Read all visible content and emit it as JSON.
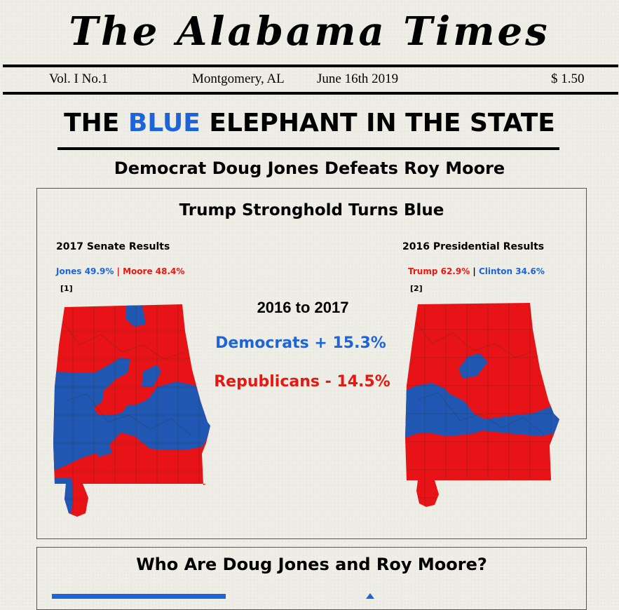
{
  "masthead": {
    "title": "The Alabama Times"
  },
  "infobar": {
    "volume": "Vol. I No.1",
    "location": "Montgomery, AL",
    "date": "June 16th 2019",
    "price": "$ 1.50"
  },
  "headline": {
    "part1": "THE ",
    "highlight": "BLUE",
    "part2": " ELEPHANT IN THE STATE"
  },
  "subheadline": "Democrat Doug Jones Defeats Roy Moore",
  "panel": {
    "title": "Trump Stronghold Turns Blue",
    "left_map": {
      "label": "2017 Senate Results",
      "result_a": "Jones 49.9%",
      "separator": " | ",
      "result_b": "Moore 48.4%",
      "ref": "[1]"
    },
    "right_map": {
      "label": "2016 Presidential Results",
      "result_a": "Trump 62.9%",
      "separator": " | ",
      "result_b": "Clinton 34.6%",
      "ref": "[2]"
    },
    "center": {
      "period": "2016 to 2017",
      "democrats": "Democrats + 15.3%",
      "republicans": "Republicans - 14.5%"
    }
  },
  "section2": {
    "title": "Who Are Doug Jones and Roy Moore?"
  },
  "colors": {
    "democrat": "#1e64d7",
    "republican": "#e8170f",
    "map_blue": "#1f57b2",
    "map_red": "#e81316"
  },
  "icons": [
    "map-of-alabama-2017",
    "map-of-alabama-2016",
    "arrow-right-icon"
  ]
}
